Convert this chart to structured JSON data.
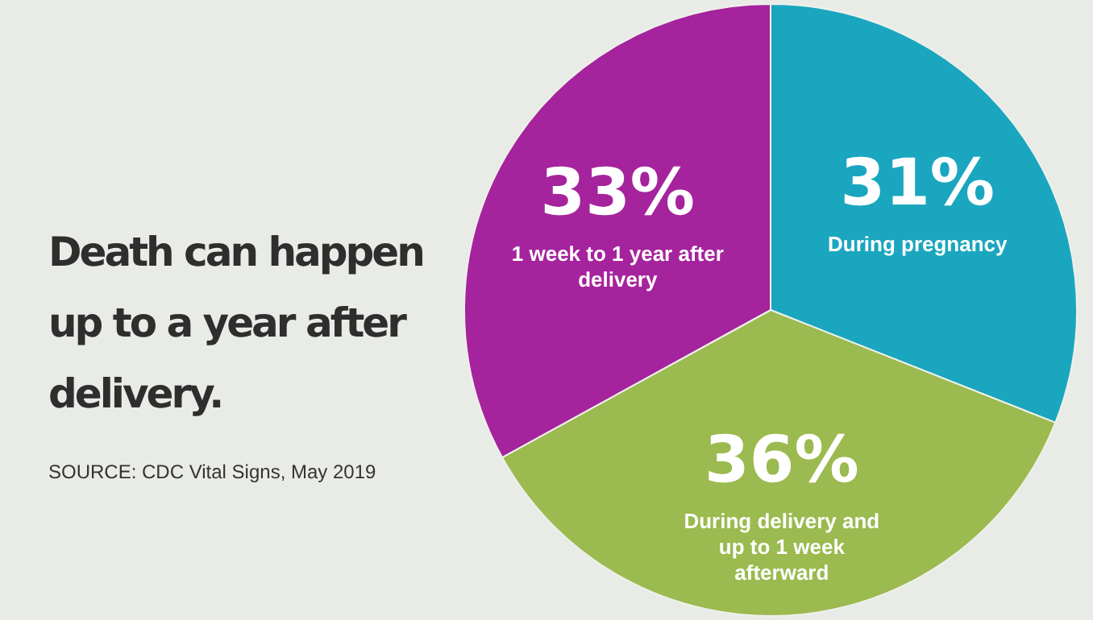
{
  "chart_data": {
    "type": "pie",
    "title": "Death can happen up to a year after delivery.",
    "categories": [
      "During pregnancy",
      "During delivery and up to 1 week afterward",
      "1 week to 1 year after delivery"
    ],
    "values": [
      31,
      36,
      33
    ],
    "colors": [
      "#1aa6bf",
      "#9bba4f",
      "#a5239c"
    ],
    "value_labels": [
      "31%",
      "36%",
      "33%"
    ],
    "legend": false,
    "annotations": [
      "SOURCE: CDC Vital Signs, May 2019"
    ]
  }
}
